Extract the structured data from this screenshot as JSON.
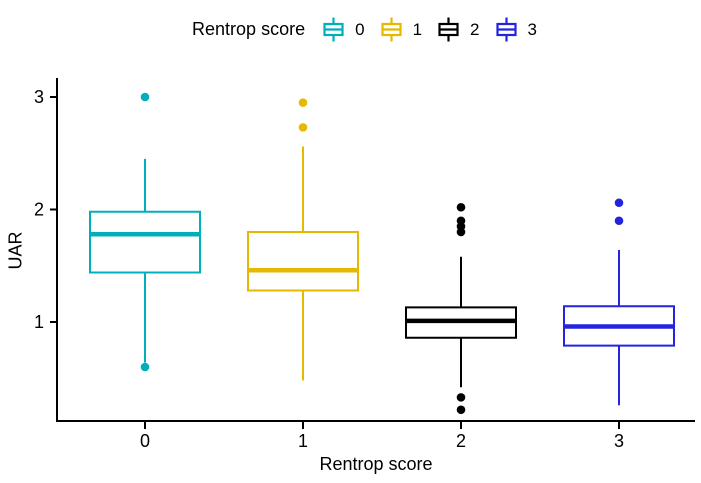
{
  "chart_data": {
    "type": "boxplot",
    "legend_title": "Rentrop score",
    "legend_position": "top",
    "xlabel": "Rentrop score",
    "ylabel": "UAR",
    "categories": [
      "0",
      "1",
      "2",
      "3"
    ],
    "y_ticks": [
      1,
      2,
      3
    ],
    "ylim": [
      0.08,
      3.2
    ],
    "grid": false,
    "series": [
      {
        "name": "0",
        "color": "#00AFBB",
        "whisker_low": 0.64,
        "q1": 1.44,
        "median": 1.78,
        "q3": 1.98,
        "whisker_high": 2.45,
        "outliers": [
          3.0,
          0.6
        ]
      },
      {
        "name": "1",
        "color": "#E7B800",
        "whisker_low": 0.48,
        "q1": 1.28,
        "median": 1.46,
        "q3": 1.8,
        "whisker_high": 2.56,
        "outliers": [
          2.95,
          2.73
        ]
      },
      {
        "name": "2",
        "color": "#000000",
        "whisker_low": 0.42,
        "q1": 0.86,
        "median": 1.01,
        "q3": 1.13,
        "whisker_high": 1.58,
        "outliers": [
          2.02,
          1.9,
          1.85,
          1.8,
          0.33,
          0.22
        ]
      },
      {
        "name": "3",
        "color": "#2323E0",
        "whisker_low": 0.26,
        "q1": 0.79,
        "median": 0.96,
        "q3": 1.14,
        "whisker_high": 1.64,
        "outliers": [
          2.06,
          1.9
        ]
      }
    ]
  }
}
